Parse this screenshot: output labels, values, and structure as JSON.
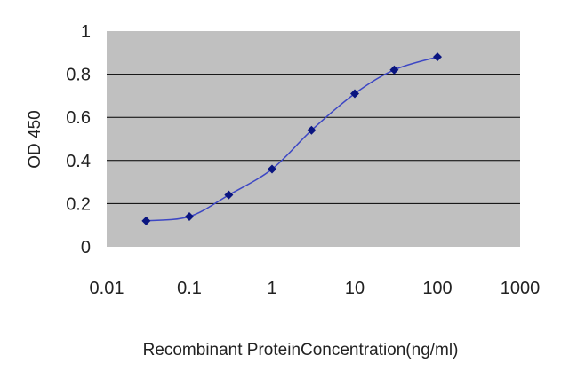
{
  "chart_data": {
    "type": "line",
    "title": "",
    "xlabel": "Recombinant ProteinConcentration(ng/ml)",
    "ylabel": "OD 450",
    "xscale": "log",
    "xlim": [
      0.01,
      1000
    ],
    "ylim": [
      0,
      1
    ],
    "x_ticks": [
      "0.01",
      "0.1",
      "1",
      "10",
      "100",
      "1000"
    ],
    "y_ticks": [
      "0",
      "0.2",
      "0.4",
      "0.6",
      "0.8",
      "1"
    ],
    "grid": "horizontal",
    "legend": "none",
    "series": [
      {
        "x": [
          0.03,
          0.1,
          0.3,
          1,
          3,
          10,
          30,
          100
        ],
        "y": [
          0.12,
          0.14,
          0.24,
          0.36,
          0.54,
          0.71,
          0.82,
          0.88
        ]
      }
    ],
    "colors": {
      "plot_background": "#c0c0c0",
      "gridline": "#000000",
      "line": "#3d47c4",
      "marker": "#0a1580"
    }
  }
}
